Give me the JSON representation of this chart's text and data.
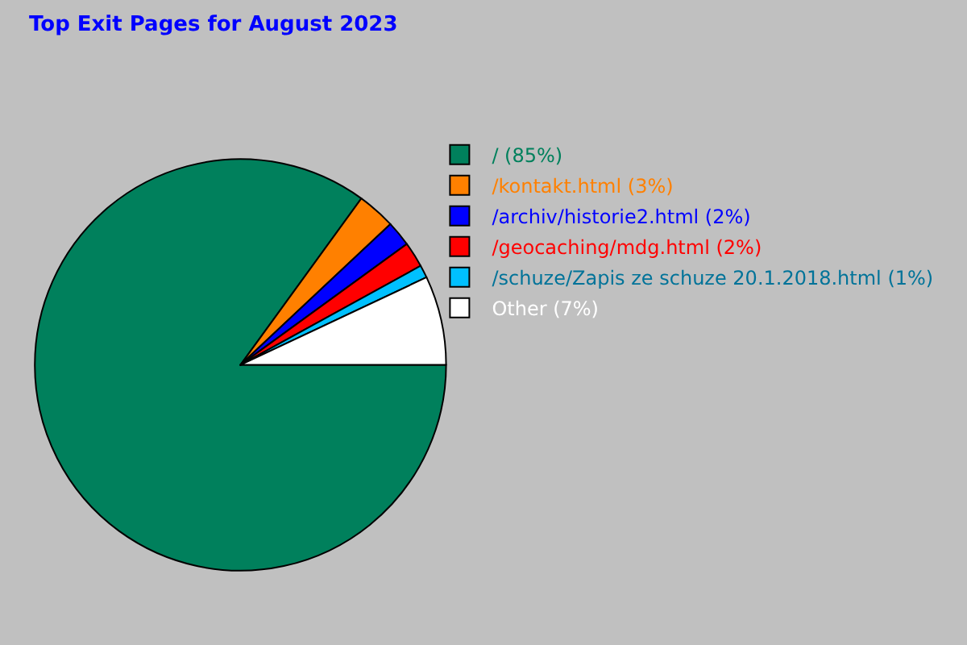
{
  "chart_data": {
    "type": "pie",
    "title": "Top Exit Pages for August 2023",
    "categories": [
      "/",
      "/kontakt.html",
      "/archiv/historie2.html",
      "/geocaching/mdg.html",
      "/schuze/Zapis ze schuze 20.1.2018.html",
      "Other"
    ],
    "values": [
      85,
      3,
      2,
      2,
      1,
      7
    ],
    "colors": [
      "#00805c",
      "#ff8000",
      "#0000ff",
      "#ff0000",
      "#00c0ff",
      "#ffffff"
    ],
    "value_labels": [
      "(85%)",
      "(3%)",
      "(2%)",
      "(2%)",
      "(1%)",
      "(7%)"
    ],
    "legend": "top right"
  }
}
